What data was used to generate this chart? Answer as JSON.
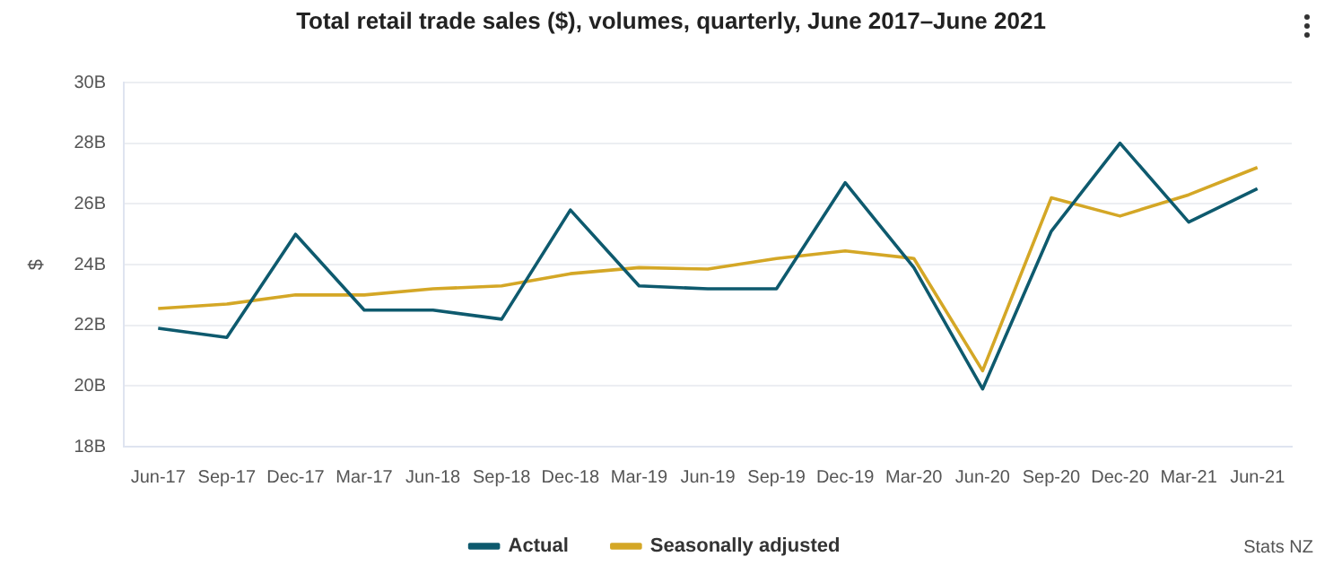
{
  "chart_data": {
    "type": "line",
    "title": "Total retail trade sales ($), volumes, quarterly, June 2017–June 2021",
    "ylabel": "$",
    "categories": [
      "Jun-17",
      "Sep-17",
      "Dec-17",
      "Mar-17",
      "Jun-18",
      "Sep-18",
      "Dec-18",
      "Mar-19",
      "Jun-19",
      "Sep-19",
      "Dec-19",
      "Mar-20",
      "Jun-20",
      "Sep-20",
      "Dec-20",
      "Mar-21",
      "Jun-21"
    ],
    "series": [
      {
        "name": "Actual",
        "color": "#0e5a6e",
        "values": [
          21.9,
          21.6,
          25.0,
          22.5,
          22.5,
          22.2,
          25.8,
          23.3,
          23.2,
          23.2,
          26.7,
          23.9,
          19.9,
          25.1,
          28.0,
          25.4,
          26.5
        ]
      },
      {
        "name": "Seasonally adjusted",
        "color": "#d4a726",
        "values": [
          22.55,
          22.7,
          23.0,
          23.0,
          23.2,
          23.3,
          23.7,
          23.9,
          23.85,
          24.2,
          24.45,
          24.2,
          20.5,
          26.2,
          25.6,
          26.3,
          27.2
        ]
      }
    ],
    "ylim": [
      18,
      30
    ],
    "yticks": [
      {
        "value": 18,
        "label": "18B"
      },
      {
        "value": 20,
        "label": "20B"
      },
      {
        "value": 22,
        "label": "22B"
      },
      {
        "value": 24,
        "label": "24B"
      },
      {
        "value": 26,
        "label": "26B"
      },
      {
        "value": 28,
        "label": "28B"
      },
      {
        "value": 30,
        "label": "30B"
      }
    ],
    "grid": "y",
    "legend": "bottom",
    "marker": "none",
    "line_style": "solid",
    "annotations": [
      "Stats NZ"
    ]
  }
}
